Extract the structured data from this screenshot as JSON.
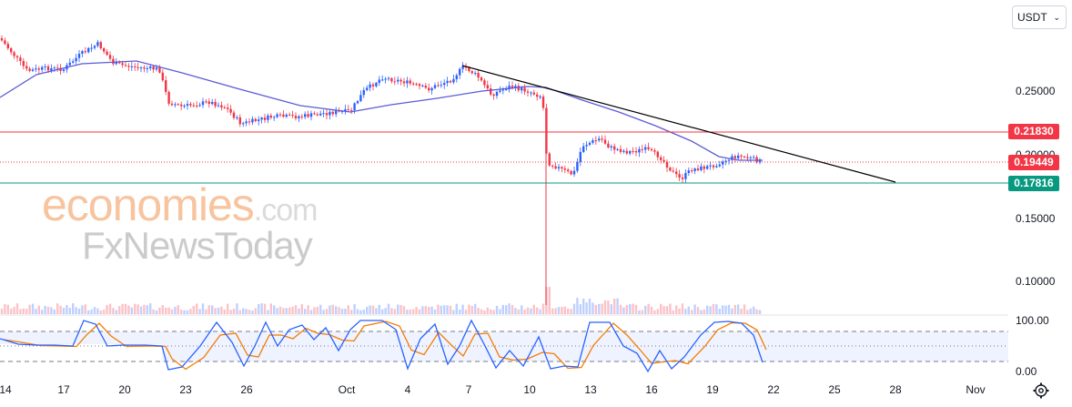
{
  "currency_selector": {
    "label": "USDT",
    "chevron": "chevron-down-icon"
  },
  "price_axis": {
    "ticks": [
      "0.25000",
      "0.20000",
      "0.15000",
      "0.10000"
    ]
  },
  "levels": {
    "resistance": {
      "label": "0.21830",
      "value": 0.2183,
      "color": "#f23645"
    },
    "current": {
      "label": "0.19449",
      "value": 0.19449,
      "color": "#f23645"
    },
    "support": {
      "label": "0.17816",
      "value": 0.17816,
      "color": "#089981"
    }
  },
  "time_axis": {
    "ticks": [
      "14",
      "17",
      "20",
      "23",
      "26",
      "Oct",
      "4",
      "7",
      "10",
      "13",
      "16",
      "19",
      "22",
      "25",
      "28",
      "Nov"
    ]
  },
  "oscillator": {
    "upper_label": "100.00",
    "lower_label": "0.00"
  },
  "watermark": {
    "line1_main": "economies",
    "line1_suffix": ".com",
    "line2": "FxNewsToday"
  },
  "colors": {
    "up": "#2962ff",
    "down": "#f23645",
    "ma": "#5b5bd6",
    "trendline": "#000000",
    "stoch_k": "#2962ff",
    "stoch_d": "#f57c00"
  },
  "settings": {
    "icon": "gear-icon"
  }
}
